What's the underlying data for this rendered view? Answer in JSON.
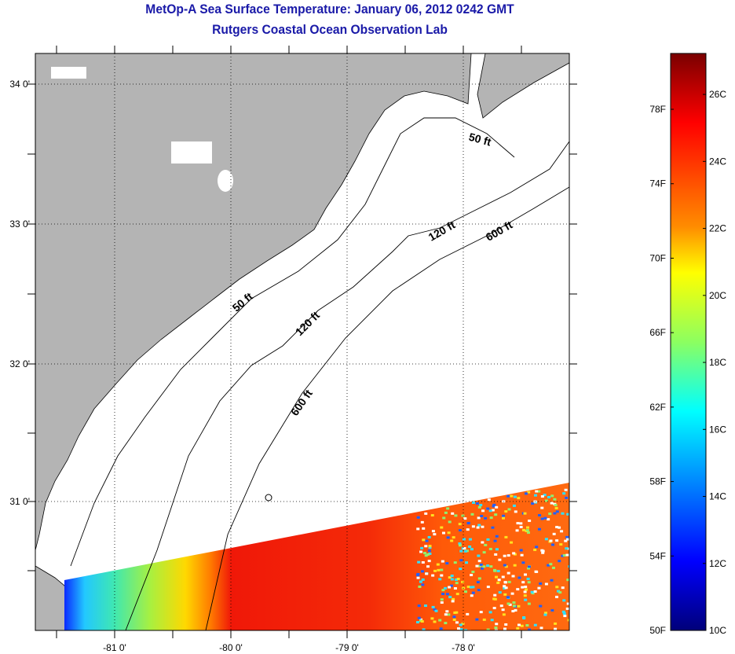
{
  "title": "MetOp-A Sea Surface Temperature:  January 06, 2012 0242 GMT",
  "subtitle": "Rutgers Coastal Ocean Observation Lab",
  "map": {
    "lat_labels": [
      "34 0'",
      "33 0'",
      "32 0'",
      "31 0'"
    ],
    "lon_labels": [
      "-81 0'",
      "-80 0'",
      "-79 0'",
      "-78 0'"
    ],
    "contour_labels": {
      "c50a": "50 ft",
      "c50b": "50 ft",
      "c120a": "120 ft",
      "c120b": "120 ft",
      "c600a": "600 ft",
      "c600b": "600 ft"
    },
    "colors": {
      "land": "#b4b4b4",
      "no_data": "#ffffff"
    }
  },
  "colorbar": {
    "fahrenheit_labels": [
      "78F",
      "74F",
      "70F",
      "66F",
      "62F",
      "58F",
      "54F",
      "50F"
    ],
    "celsius_labels": [
      "26C",
      "24C",
      "22C",
      "20C",
      "18C",
      "16C",
      "14C",
      "12C",
      "10C"
    ],
    "range_f": [
      50,
      81
    ]
  }
}
